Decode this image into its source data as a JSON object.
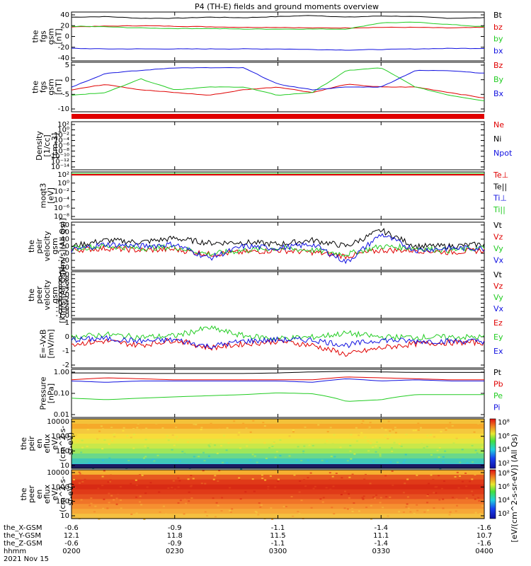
{
  "title": "P4 (TH-E) fields and ground moments overview",
  "date_label": "2021 Nov 15",
  "ephemeris": {
    "row_labels": [
      "the_X-GSM",
      "the_Y-GSM",
      "the_Z-GSM",
      "hhmm"
    ],
    "columns": [
      {
        "x": "-0.6",
        "y": "12.1",
        "z": "-0.6",
        "hhmm": "0200"
      },
      {
        "x": "-0.9",
        "y": "11.8",
        "z": "-0.9",
        "hhmm": "0230"
      },
      {
        "x": "-1.1",
        "y": "11.5",
        "z": "-1.1",
        "hhmm": "0300"
      },
      {
        "x": "-1.4",
        "y": "11.1",
        "z": "-1.4",
        "hhmm": "0330"
      },
      {
        "x": "-1.6",
        "y": "10.7",
        "z": "-1.6",
        "hhmm": "0400"
      }
    ]
  },
  "colors": {
    "black": "#000000",
    "red": "#e00000",
    "green": "#22cc22",
    "blue": "#1010e0"
  },
  "chart_data": [
    {
      "type": "line",
      "ylabel": [
        "the",
        "fgs",
        "gsm",
        "[nT]"
      ],
      "yticks": [
        "40",
        "20",
        "0",
        "-20",
        "-40"
      ],
      "ylim": [
        -42,
        44
      ],
      "series": [
        {
          "name": "Bt",
          "color": "black",
          "values": [
            35,
            36,
            33,
            33,
            35,
            34,
            36,
            38,
            35,
            37,
            36,
            33,
            34
          ]
        },
        {
          "name": "bz",
          "color": "red",
          "values": [
            18,
            19,
            20,
            19,
            18,
            17,
            17,
            16,
            16,
            17,
            17,
            16,
            17
          ]
        },
        {
          "name": "by",
          "color": "green",
          "values": [
            19,
            18,
            16,
            15,
            15,
            14,
            14,
            14,
            14,
            25,
            26,
            22,
            18
          ]
        },
        {
          "name": "bx",
          "color": "blue",
          "values": [
            -20,
            -21,
            -21,
            -21,
            -21,
            -21,
            -21,
            -22,
            -23,
            -22,
            -21,
            -20,
            -20
          ]
        }
      ]
    },
    {
      "type": "line",
      "ylabel": [
        "the",
        "fgs",
        "gsm",
        "[nT]"
      ],
      "yticks": [
        "5",
        "0",
        "-5",
        "-10"
      ],
      "ylim": [
        -12,
        6
      ],
      "series": [
        {
          "name": "Bz",
          "color": "red",
          "values": [
            -4,
            -2,
            -4,
            -5,
            -6,
            -4,
            -3,
            -5,
            -2,
            -3,
            -3,
            -5,
            -7
          ]
        },
        {
          "name": "By",
          "color": "green",
          "values": [
            -6,
            -5,
            0,
            -4,
            -3,
            -3,
            -6,
            -5,
            3,
            4,
            -3,
            -6,
            -8
          ]
        },
        {
          "name": "Bx",
          "color": "blue",
          "values": [
            -3,
            2,
            3,
            4,
            4,
            4,
            -2,
            -4,
            -3,
            -3,
            3,
            3,
            2
          ]
        }
      ]
    },
    {
      "type": "line",
      "ylabel": [
        "Density",
        "[1/cc]",
        "[cm-3]"
      ],
      "yticks": [
        "10²",
        "10⁰",
        "10⁻²",
        "10⁻⁴",
        "10⁻⁶",
        "10⁻⁸",
        "10⁻¹⁰",
        "10⁻¹²",
        "10⁻¹⁴"
      ],
      "scale": "log",
      "series": [
        {
          "name": "Ne",
          "color": "red",
          "values": []
        },
        {
          "name": "Ni",
          "color": "black",
          "values": []
        },
        {
          "name": "Npot",
          "color": "blue",
          "values": []
        }
      ]
    },
    {
      "type": "line",
      "ylabel": [
        "moqt3",
        "[eV]"
      ],
      "yticks": [
        "10²",
        "10⁰",
        "10⁻²",
        "10⁻⁴",
        "10⁻⁶",
        "10⁻⁸"
      ],
      "scale": "log",
      "series": [
        {
          "name": "Te⊥",
          "color": "red",
          "values": []
        },
        {
          "name": "Te||",
          "color": "black",
          "values": []
        },
        {
          "name": "Ti⊥",
          "color": "blue",
          "values": []
        },
        {
          "name": "Ti||",
          "color": "green",
          "values": []
        }
      ]
    },
    {
      "type": "line",
      "ylabel": [
        "the",
        "peir",
        "velocity",
        "gsm",
        "[km/s](All Qs)]"
      ],
      "yticks": [
        "80",
        "60",
        "40",
        "20",
        "0",
        "-20",
        "-40"
      ],
      "ylim": [
        -40,
        80
      ],
      "series": [
        {
          "name": "Vt",
          "color": "black",
          "values": [
            20,
            35,
            30,
            40,
            28,
            30,
            25,
            35,
            20,
            60,
            20,
            20,
            25
          ]
        },
        {
          "name": "Vz",
          "color": "red",
          "values": [
            10,
            15,
            10,
            12,
            0,
            5,
            10,
            5,
            -5,
            10,
            10,
            5,
            10
          ]
        },
        {
          "name": "Vy",
          "color": "green",
          "values": [
            15,
            20,
            15,
            18,
            0,
            10,
            15,
            10,
            0,
            20,
            15,
            10,
            15
          ]
        },
        {
          "name": "Vx",
          "color": "blue",
          "values": [
            10,
            25,
            20,
            25,
            -10,
            20,
            15,
            25,
            -20,
            50,
            10,
            15,
            15
          ]
        }
      ]
    },
    {
      "type": "line",
      "ylabel": [
        "the",
        "peer",
        "velocity",
        "gsm",
        "[km/s](All Qs)]"
      ],
      "yticks": [
        "1.0",
        "0.8",
        "0.6",
        "0.4",
        "0.2",
        "0.0",
        "-0.2",
        "-0.4",
        "-0.6",
        "-0.8",
        "-1.0"
      ],
      "ylim": [
        -1,
        1
      ],
      "series": [
        {
          "name": "Vt",
          "color": "black",
          "values": []
        },
        {
          "name": "Vz",
          "color": "red",
          "values": []
        },
        {
          "name": "Vy",
          "color": "green",
          "values": []
        },
        {
          "name": "Vx",
          "color": "blue",
          "values": []
        }
      ]
    },
    {
      "type": "line",
      "ylabel": [
        "E=-VxB",
        "[mV/m]"
      ],
      "yticks": [
        "1",
        "0",
        "-1",
        "-2"
      ],
      "ylim": [
        -2,
        1.6
      ],
      "series": [
        {
          "name": "Ez",
          "color": "red",
          "values": [
            -0.2,
            0,
            -0.3,
            0.1,
            -0.5,
            -0.2,
            0,
            -0.3,
            -1.0,
            -0.5,
            -0.2,
            -0.1,
            -0.1
          ]
        },
        {
          "name": "Ey",
          "color": "green",
          "values": [
            0.3,
            0.5,
            0.3,
            0.4,
            1.0,
            0.4,
            0.2,
            0.3,
            0.6,
            0.3,
            0.3,
            0.3,
            0.3
          ]
        },
        {
          "name": "Ex",
          "color": "blue",
          "values": [
            0.1,
            0.2,
            0,
            0.1,
            -0.4,
            0,
            0.1,
            0.1,
            -0.3,
            0.1,
            0,
            0,
            0
          ]
        }
      ]
    },
    {
      "type": "line",
      "ylabel": [
        "Pressure",
        "[nPa]"
      ],
      "yticks": [
        "1.00",
        "0.10",
        "0.01"
      ],
      "scale": "log",
      "ylim": [
        0.01,
        1.3
      ],
      "series": [
        {
          "name": "Pt",
          "color": "black",
          "values": [
            0.9,
            0.9,
            0.85,
            0.85,
            0.85,
            0.85,
            0.9,
            1.0,
            1.05,
            1.0,
            0.95,
            0.95,
            0.95
          ]
        },
        {
          "name": "Pb",
          "color": "red",
          "values": [
            0.45,
            0.55,
            0.5,
            0.45,
            0.45,
            0.45,
            0.45,
            0.45,
            0.6,
            0.55,
            0.5,
            0.45,
            0.45
          ]
        },
        {
          "name": "Pe",
          "color": "green",
          "values": [
            0.07,
            0.06,
            0.07,
            0.08,
            0.09,
            0.1,
            0.12,
            0.11,
            0.05,
            0.06,
            0.1,
            0.1,
            0.1
          ]
        },
        {
          "name": "Pi",
          "color": "blue",
          "values": [
            0.4,
            0.35,
            0.4,
            0.4,
            0.4,
            0.4,
            0.4,
            0.35,
            0.5,
            0.4,
            0.45,
            0.4,
            0.4
          ]
        }
      ]
    },
    {
      "type": "heatmap",
      "ylabel": [
        "the",
        "peir",
        "en",
        "eflux",
        "eV/",
        "(cm^2-s-",
        "sr-eV)"
      ],
      "yticks": [
        "10000",
        "1000",
        "100",
        "10"
      ],
      "scale": "log"
    },
    {
      "type": "heatmap",
      "ylabel": [
        "the",
        "peer",
        "en",
        "eflux",
        "eV/",
        "(cm^2-s-",
        "sr-eV)"
      ],
      "yticks": [
        "10000",
        "1000",
        "100",
        "10"
      ],
      "scale": "log"
    }
  ],
  "colorbar": {
    "ticks": [
      "10⁸",
      "10⁶",
      "10⁴",
      "10²"
    ],
    "label": "[eV/(cm^2-s-sr-eV)] (All Qs)"
  }
}
